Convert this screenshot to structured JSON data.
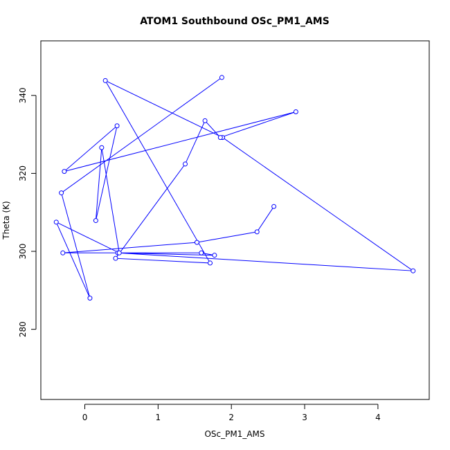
{
  "chart_data": {
    "type": "line",
    "title": "ATOM1 Southbound OSc_PM1_AMS",
    "xlabel": "OSc_PM1_AMS",
    "ylabel": "Theta (K)",
    "xlim": [
      -0.6,
      4.7
    ],
    "ylim": [
      262,
      354
    ],
    "x_ticks": [
      0,
      1,
      2,
      3,
      4
    ],
    "y_ticks": [
      280,
      300,
      320,
      340
    ],
    "grid": false,
    "legend": "none",
    "series_color": "#0000ff",
    "x": [
      2.58,
      2.35,
      1.53,
      -0.3,
      1.59,
      1.77,
      0.45,
      4.48,
      1.88,
      0.28,
      1.71,
      0.42,
      1.37,
      1.64,
      1.85,
      2.88,
      -0.28,
      0.44,
      0.15,
      0.23,
      0.47,
      -0.39,
      0.07,
      -0.32,
      1.87
    ],
    "y": [
      311.5,
      305.0,
      302.3,
      299.6,
      299.6,
      299.0,
      299.6,
      295.0,
      329.2,
      343.8,
      297.0,
      298.2,
      322.4,
      333.5,
      329.2,
      335.8,
      320.5,
      332.2,
      307.9,
      326.6,
      299.6,
      307.5,
      288.0,
      315.0,
      344.6
    ]
  }
}
